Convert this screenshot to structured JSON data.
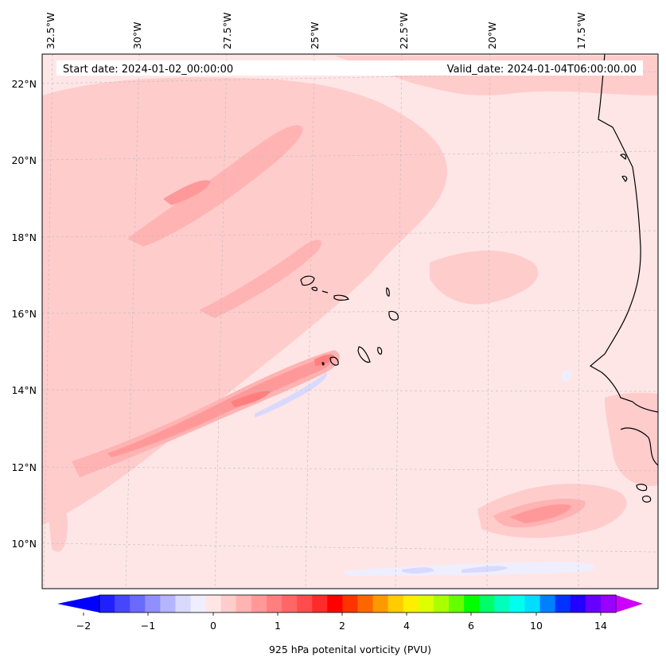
{
  "header": {
    "start_label": "Start date: 2024-01-02_00:00:00",
    "valid_label": "Valid_date: 2024-01-04T06:00:00.00"
  },
  "map": {
    "lon_labels": [
      "32.5°W",
      "30°W",
      "27.5°W",
      "25°W",
      "22.5°W",
      "20°W",
      "17.5°W"
    ],
    "lat_labels": [
      "22°N",
      "20°N",
      "18°N",
      "16°N",
      "14°N",
      "12°N",
      "10°N"
    ],
    "background_color": "#ffe6e6",
    "coast_color": "#000000"
  },
  "colorbar": {
    "label": "925 hPa potenital vorticity (PVU)",
    "ticks": [
      "−2",
      "−1",
      "0",
      "1",
      "2",
      "4",
      "6",
      "10",
      "14"
    ],
    "under_color": "#0000ff",
    "over_color": "#cc00ff",
    "colors": [
      "#2020ff",
      "#4646ff",
      "#6a6aff",
      "#8f8fff",
      "#b4b4ff",
      "#d9d9ff",
      "#eeeeff",
      "#ffe6e6",
      "#ffcccc",
      "#ffb3b3",
      "#ff9999",
      "#ff7f7f",
      "#ff6666",
      "#ff4d4d",
      "#ff2a2a",
      "#ff0000",
      "#ff3300",
      "#ff6600",
      "#ff9900",
      "#ffcc00",
      "#ffee00",
      "#ddff00",
      "#aaff00",
      "#66ff00",
      "#00ff00",
      "#00ff66",
      "#00ffbb",
      "#00ffee",
      "#00ddff",
      "#0080ff",
      "#0033ff",
      "#2200ff",
      "#6600ff",
      "#9900ff"
    ]
  }
}
